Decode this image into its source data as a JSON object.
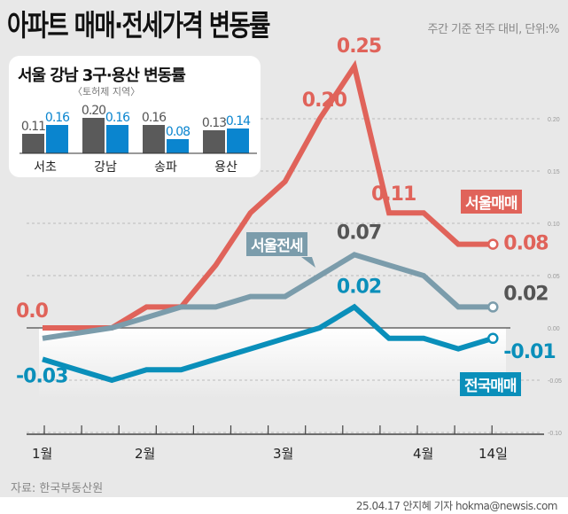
{
  "header": {
    "title": "아파트 매매·전세가격 변동률",
    "subtitle": "주간 기준 전주 대비, 단위:%"
  },
  "colors": {
    "background": "#e8e8e8",
    "seoul_sale": "#e0635a",
    "seoul_jeonse": "#7b9cab",
    "national_sale": "#0a8fba",
    "bar_sale": "#5a5a5a",
    "bar_jeonse": "#0a85cf"
  },
  "chart_data": [
    {
      "type": "line",
      "x_ticks": [
        "1월",
        "2월",
        "3월",
        "4월",
        "14일"
      ],
      "yticks": [
        "0.20",
        "0.15",
        "0.10",
        "0.05",
        "0.00",
        "-0.05",
        "-0.10"
      ],
      "ylim": [
        -0.1,
        0.25
      ],
      "grid": true,
      "series": [
        {
          "name": "서울매매",
          "values": [
            0,
            0,
            0,
            0.02,
            0.02,
            0.06,
            0.11,
            0.14,
            0.2,
            0.25,
            0.11,
            0.11,
            0.08,
            0.08
          ],
          "labels": [
            {
              "i": 0,
              "text": "0.0"
            },
            {
              "i": 8,
              "text": "0.20"
            },
            {
              "i": 9,
              "text": "0.25"
            },
            {
              "i": 10,
              "text": "0.11"
            },
            {
              "i": 13,
              "text": "0.08"
            }
          ]
        },
        {
          "name": "서울전세",
          "values": [
            -0.01,
            -0.005,
            0,
            0.01,
            0.02,
            0.02,
            0.03,
            0.03,
            0.05,
            0.07,
            0.06,
            0.05,
            0.02,
            0.02
          ],
          "labels": [
            {
              "i": 9,
              "text": "0.07"
            },
            {
              "i": 13,
              "text": "0.02"
            }
          ]
        },
        {
          "name": "전국매매",
          "values": [
            -0.03,
            -0.04,
            -0.05,
            -0.04,
            -0.04,
            -0.03,
            -0.02,
            -0.01,
            0,
            0.02,
            -0.01,
            -0.01,
            -0.02,
            -0.01
          ],
          "labels": [
            {
              "i": 0,
              "text": "-0.03"
            },
            {
              "i": 9,
              "text": "0.02"
            },
            {
              "i": 13,
              "text": "-0.01"
            }
          ]
        }
      ]
    },
    {
      "type": "bar",
      "title": "서울 강남 3구·용산 변동률",
      "subtitle": "〈토허제 지역〉",
      "categories": [
        "서초",
        "강남",
        "송파",
        "용산"
      ],
      "series": [
        {
          "values": [
            0.11,
            0.2,
            0.16,
            0.13
          ],
          "labels": [
            "0.11",
            "0.20",
            "0.16",
            "0.13"
          ]
        },
        {
          "values": [
            0.16,
            0.16,
            0.08,
            0.14
          ],
          "labels": [
            "0.16",
            "0.16",
            "0.08",
            "0.14"
          ]
        }
      ]
    }
  ],
  "footer": {
    "source": "자료: 한국부동산원",
    "credit": "25.04.17 안지혜 기자 hokma@newsis.com"
  }
}
